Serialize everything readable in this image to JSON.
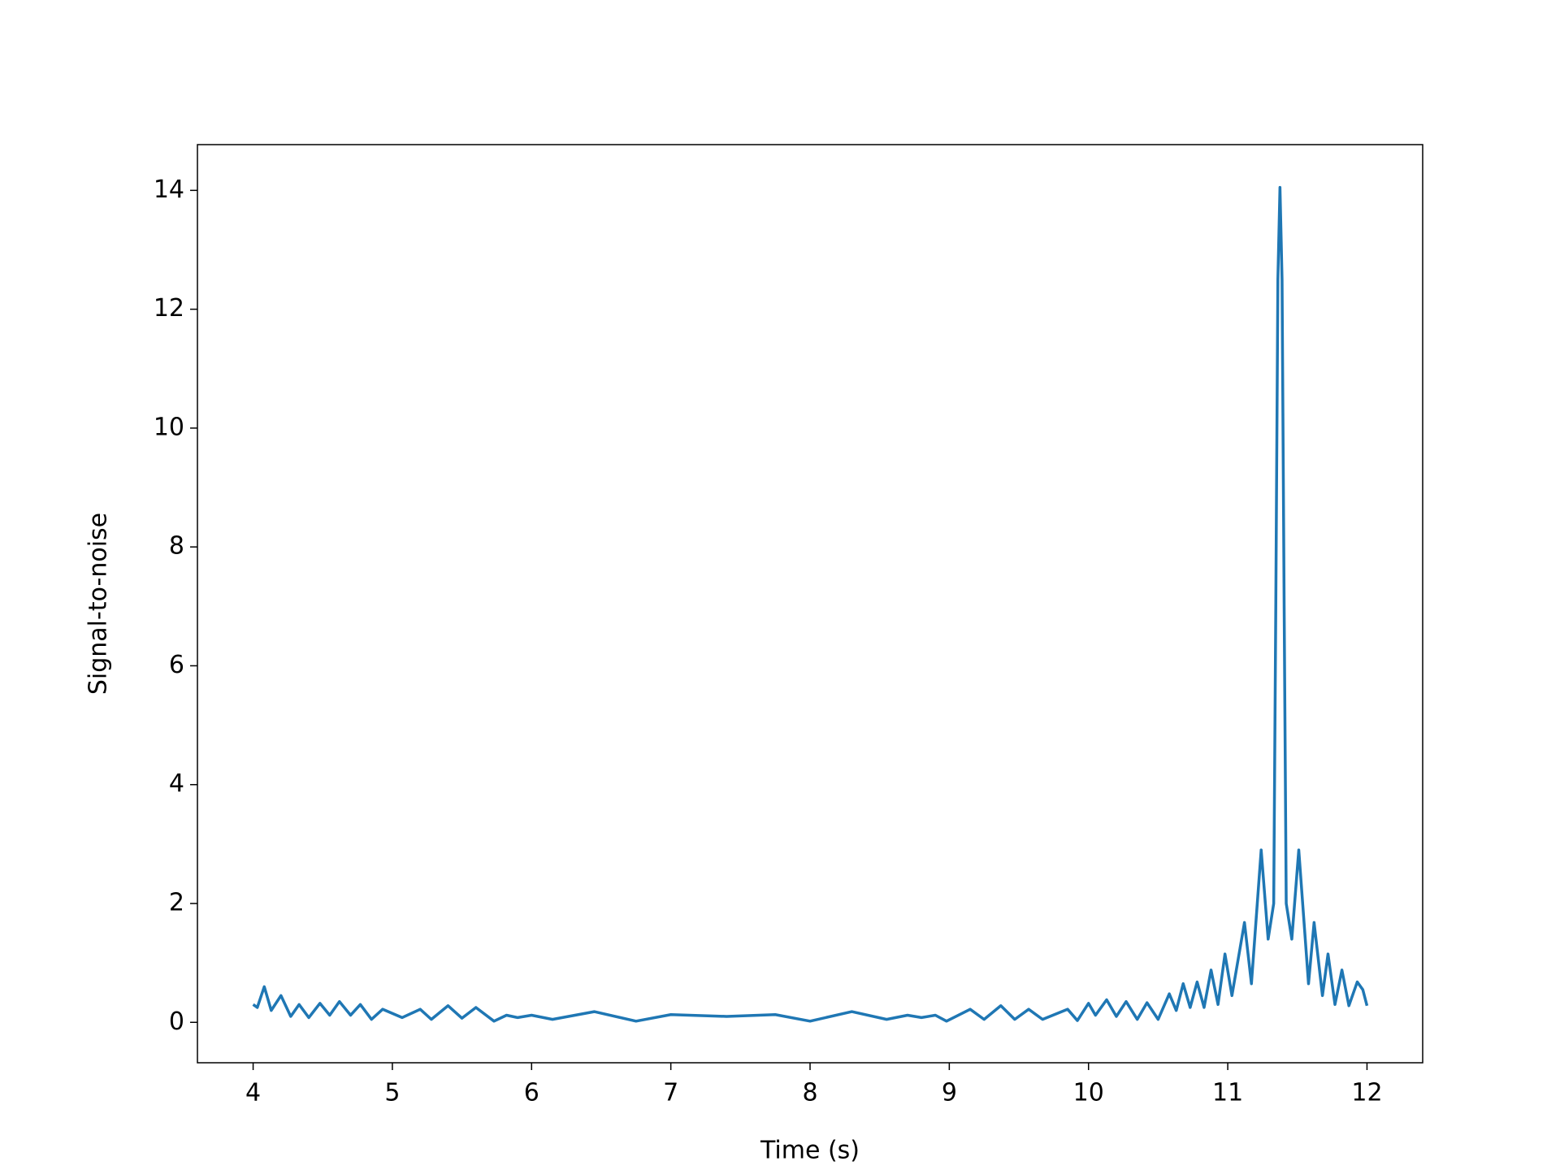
{
  "chart_data": {
    "type": "line",
    "x_label": "Time (s)",
    "y_label": "Signal-to-noise",
    "x": [
      4.0,
      4.03,
      4.08,
      4.13,
      4.2,
      4.27,
      4.33,
      4.4,
      4.48,
      4.55,
      4.62,
      4.7,
      4.77,
      4.85,
      4.93,
      5.07,
      5.2,
      5.28,
      5.4,
      5.5,
      5.6,
      5.73,
      5.82,
      5.9,
      6.0,
      6.15,
      6.45,
      6.75,
      7.0,
      7.4,
      7.75,
      8.0,
      8.3,
      8.55,
      8.7,
      8.8,
      8.9,
      8.98,
      9.15,
      9.25,
      9.37,
      9.47,
      9.57,
      9.67,
      9.85,
      9.92,
      10.0,
      10.05,
      10.13,
      10.2,
      10.27,
      10.35,
      10.42,
      10.5,
      10.58,
      10.63,
      10.68,
      10.73,
      10.78,
      10.83,
      10.88,
      10.93,
      10.98,
      11.03,
      11.12,
      11.17,
      11.24,
      11.29,
      11.33,
      11.345,
      11.36,
      11.375,
      11.39,
      11.405,
      11.42,
      11.46,
      11.51,
      11.58,
      11.62,
      11.68,
      11.72,
      11.77,
      11.82,
      11.87,
      11.93,
      11.97,
      12.0
    ],
    "series": [
      {
        "name": "Signal-to-noise",
        "color": "#1f77b4",
        "values": [
          0.3,
          0.25,
          0.6,
          0.2,
          0.45,
          0.1,
          0.3,
          0.08,
          0.32,
          0.12,
          0.35,
          0.12,
          0.3,
          0.05,
          0.22,
          0.08,
          0.22,
          0.05,
          0.28,
          0.07,
          0.25,
          0.02,
          0.12,
          0.08,
          0.12,
          0.05,
          0.18,
          0.02,
          0.13,
          0.1,
          0.13,
          0.02,
          0.18,
          0.05,
          0.12,
          0.08,
          0.12,
          0.02,
          0.22,
          0.05,
          0.28,
          0.05,
          0.22,
          0.05,
          0.22,
          0.03,
          0.32,
          0.12,
          0.38,
          0.1,
          0.35,
          0.05,
          0.33,
          0.05,
          0.48,
          0.2,
          0.65,
          0.25,
          0.68,
          0.25,
          0.88,
          0.3,
          1.15,
          0.45,
          1.68,
          0.65,
          2.9,
          1.4,
          2.0,
          7.0,
          12.5,
          14.05,
          12.5,
          7.0,
          2.0,
          1.4,
          2.9,
          0.65,
          1.68,
          0.45,
          1.15,
          0.3,
          0.88,
          0.28,
          0.68,
          0.55,
          0.28
        ]
      }
    ],
    "xlim": [
      3.6,
      12.4
    ],
    "ylim": [
      -0.68,
      14.77
    ],
    "xticks": [
      4,
      5,
      6,
      7,
      8,
      9,
      10,
      11,
      12
    ],
    "yticks": [
      0,
      2,
      4,
      6,
      8,
      10,
      12,
      14
    ],
    "grid": false
  }
}
